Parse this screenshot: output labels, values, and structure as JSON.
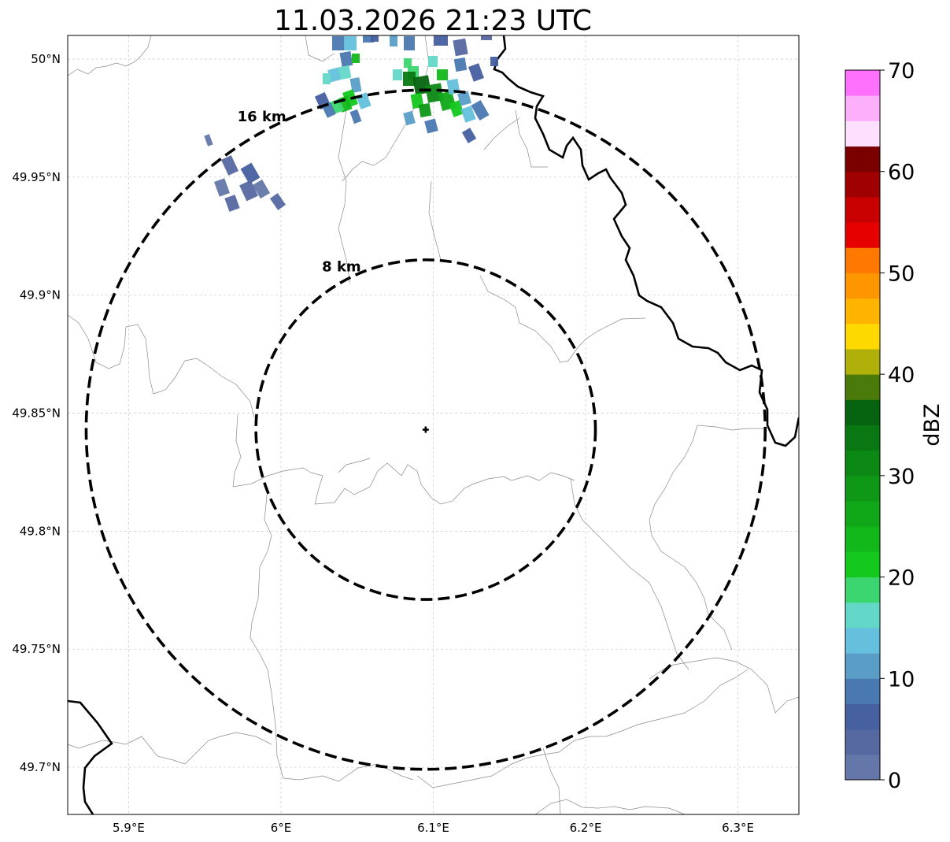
{
  "title": "11.03.2026 21:23 UTC",
  "map": {
    "lon_range": [
      5.86,
      6.34
    ],
    "lat_range": [
      49.68,
      50.01
    ],
    "lon_ticks": [
      {
        "value": 5.9,
        "label": "5.9°E"
      },
      {
        "value": 6.0,
        "label": "6°E"
      },
      {
        "value": 6.1,
        "label": "6.1°E"
      },
      {
        "value": 6.2,
        "label": "6.2°E"
      },
      {
        "value": 6.3,
        "label": "6.3°E"
      }
    ],
    "lat_ticks": [
      {
        "value": 50.0,
        "label": "50°N"
      },
      {
        "value": 49.95,
        "label": "49.95°N"
      },
      {
        "value": 49.9,
        "label": "49.9°N"
      },
      {
        "value": 49.85,
        "label": "49.85°N"
      },
      {
        "value": 49.8,
        "label": "49.8°N"
      },
      {
        "value": 49.75,
        "label": "49.75°N"
      },
      {
        "value": 49.7,
        "label": "49.7°N"
      }
    ],
    "gridlines": true,
    "radar_site": {
      "lon": 6.095,
      "lat": 49.843
    },
    "range_rings": [
      {
        "radius_km": 8,
        "label": "8 km"
      },
      {
        "radius_km": 16,
        "label": "16 km"
      }
    ]
  },
  "colorbar": {
    "label": "dBZ",
    "min": 0,
    "max": 70,
    "tick_labels": [
      "0",
      "10",
      "20",
      "30",
      "40",
      "50",
      "60",
      "70"
    ],
    "colors": [
      "#6477a8",
      "#5568a0",
      "#4660a0",
      "#4a78b0",
      "#5a9ec8",
      "#64c0dc",
      "#64d8c8",
      "#3cd670",
      "#14c81e",
      "#12b81a",
      "#10a818",
      "#0e9816",
      "#0c8814",
      "#0a7812",
      "#066410",
      "#4a7a0a",
      "#b0b00a",
      "#ffd800",
      "#ffb400",
      "#ff9600",
      "#ff7800",
      "#e60000",
      "#c80000",
      "#a00000",
      "#7a0000",
      "#fde0fd",
      "#fcb0fc",
      "#fc70fc",
      "#f032e6"
    ]
  }
}
